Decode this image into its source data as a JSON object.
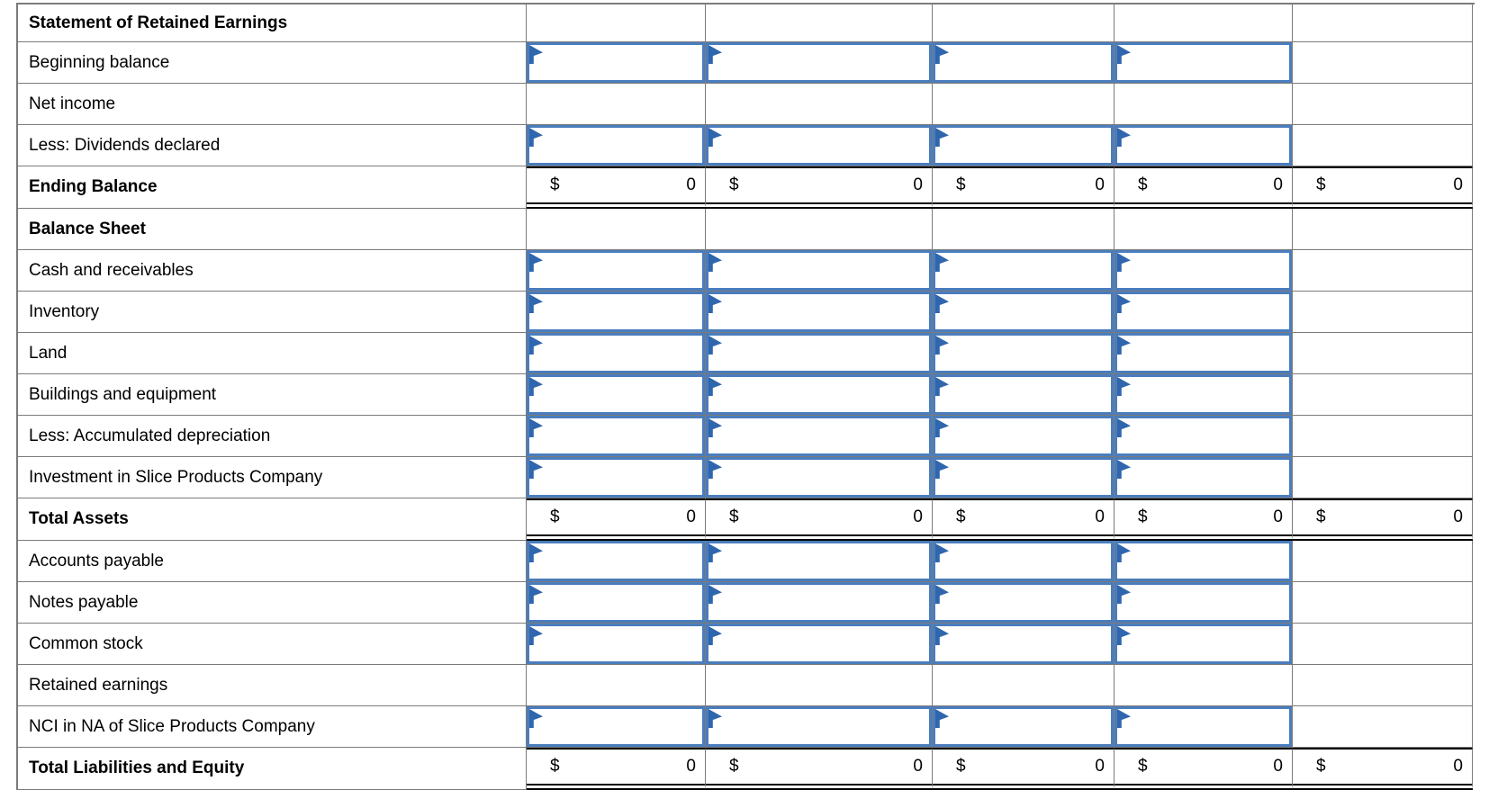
{
  "table": {
    "currency_symbol": "$",
    "colors": {
      "grid": "#7b7b7b",
      "input_border": "#4a7dbd",
      "flag": "#2f66ad",
      "total_rule": "#000000"
    },
    "columns": [
      "label",
      "col1",
      "col2",
      "col3",
      "col4",
      "col5"
    ],
    "rows": [
      {
        "label": "Statement of Retained Earnings",
        "style": "header",
        "cells": "empty"
      },
      {
        "label": "Beginning balance",
        "style": "regular",
        "cells": "inputs"
      },
      {
        "label": "Net income",
        "style": "regular",
        "cells": "empty"
      },
      {
        "label": "Less: Dividends declared",
        "style": "regular",
        "cells": "inputs"
      },
      {
        "label": "Ending Balance",
        "style": "total",
        "cells": "totals",
        "values": [
          "0",
          "0",
          "0",
          "0",
          "0"
        ]
      },
      {
        "label": "Balance Sheet",
        "style": "header",
        "cells": "empty"
      },
      {
        "label": "Cash and receivables",
        "style": "regular",
        "cells": "inputs"
      },
      {
        "label": "Inventory",
        "style": "regular",
        "cells": "inputs"
      },
      {
        "label": "Land",
        "style": "regular",
        "cells": "inputs"
      },
      {
        "label": "Buildings and equipment",
        "style": "regular",
        "cells": "inputs"
      },
      {
        "label": "Less: Accumulated depreciation",
        "style": "regular",
        "cells": "inputs"
      },
      {
        "label": "Investment in Slice Products Company",
        "style": "regular",
        "cells": "inputs"
      },
      {
        "label": "Total Assets",
        "style": "total",
        "cells": "totals",
        "values": [
          "0",
          "0",
          "0",
          "0",
          "0"
        ]
      },
      {
        "label": "Accounts payable",
        "style": "regular",
        "cells": "inputs"
      },
      {
        "label": "Notes payable",
        "style": "regular",
        "cells": "inputs"
      },
      {
        "label": "Common stock",
        "style": "regular",
        "cells": "inputs"
      },
      {
        "label": "Retained earnings",
        "style": "regular",
        "cells": "empty"
      },
      {
        "label": "NCI in NA of Slice Products Company",
        "style": "regular",
        "cells": "inputs"
      },
      {
        "label": "Total Liabilities and Equity",
        "style": "total",
        "cells": "totals",
        "values": [
          "0",
          "0",
          "0",
          "0",
          "0"
        ]
      }
    ],
    "input_value": "",
    "input_columns_per_row": 4
  }
}
